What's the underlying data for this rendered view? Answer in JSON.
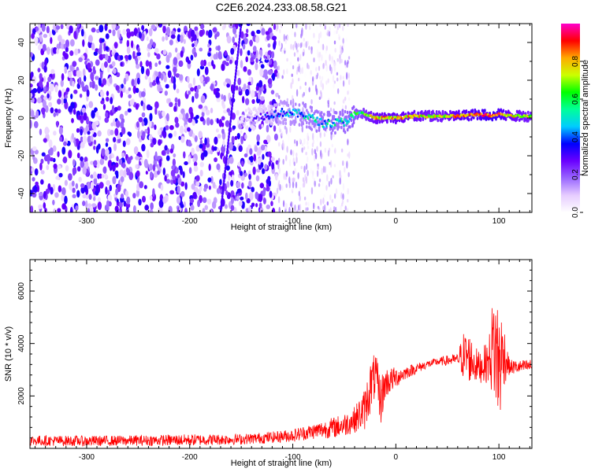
{
  "figure_title": "C2E6.2024.233.08.58.G21",
  "chart_data": [
    {
      "type": "heatmap",
      "title": "C2E6.2024.233.08.58.G21",
      "xlabel": "Height of straight line (km)",
      "ylabel": "Frequency (Hz)",
      "xlim": [
        -355,
        132
      ],
      "ylim": [
        -50,
        50
      ],
      "xticks": [
        -300,
        -200,
        -100,
        0,
        100
      ],
      "yticks": [
        -40,
        -20,
        0,
        20,
        40
      ],
      "colorbar": {
        "label": "Normalized spectral amplitude",
        "range": [
          0,
          1
        ],
        "ticks": [
          0.0,
          0.2,
          0.4,
          0.6,
          0.8
        ],
        "colormap": [
          "#ffffff",
          "#e6ccff",
          "#9966ff",
          "#6a00ff",
          "#0000ff",
          "#00ccff",
          "#00ff99",
          "#00ff00",
          "#ccff00",
          "#ffaa00",
          "#ff0000",
          "#ff00cc"
        ]
      },
      "centerline": {
        "x": [
          -150,
          -130,
          -110,
          -90,
          -70,
          -50,
          -35,
          -20,
          0,
          20,
          40,
          60,
          80,
          95,
          100,
          115,
          132
        ],
        "f": [
          -2,
          1,
          3,
          2,
          -3,
          -2,
          3,
          0,
          0,
          1,
          1,
          1,
          2,
          1,
          2,
          1,
          1
        ],
        "amplitude": [
          0.15,
          0.25,
          0.4,
          0.45,
          0.5,
          0.5,
          0.6,
          0.75,
          0.8,
          0.75,
          0.7,
          0.8,
          0.85,
          0.9,
          0.85,
          0.75,
          0.7
        ]
      },
      "noise_region": {
        "x": [
          -355,
          -115
        ],
        "amplitude": [
          0.05,
          0.35
        ]
      },
      "fade_region": {
        "x": [
          -115,
          -45
        ],
        "amplitude": [
          0.0,
          0.2
        ]
      }
    },
    {
      "type": "line",
      "xlabel": "Height of straight line (km)",
      "ylabel": "SNR (10 * v/v)",
      "xlim": [
        -355,
        132
      ],
      "ylim": [
        0,
        7200
      ],
      "xticks": [
        -300,
        -200,
        -100,
        0,
        100
      ],
      "yticks": [
        2000,
        4000,
        6000
      ],
      "color": "#ff0000",
      "series": [
        {
          "x": [
            -355,
            -300,
            -250,
            -200,
            -150,
            -120,
            -100,
            -80,
            -60,
            -50,
            -40,
            -30,
            -25,
            -20,
            -15,
            -10,
            0,
            10,
            20,
            30,
            40,
            50,
            60,
            65,
            70,
            80,
            90,
            95,
            100,
            105,
            110,
            120,
            132
          ],
          "y": [
            300,
            280,
            300,
            320,
            350,
            420,
            500,
            650,
            800,
            900,
            1100,
            1500,
            2300,
            2800,
            1800,
            2500,
            2700,
            2900,
            3050,
            3200,
            3300,
            3350,
            3400,
            3550,
            3500,
            3100,
            3300,
            4000,
            3200,
            3600,
            3100,
            3100,
            3150
          ],
          "spread": [
            200,
            200,
            200,
            220,
            200,
            220,
            250,
            300,
            400,
            450,
            500,
            800,
            1000,
            900,
            1000,
            600,
            400,
            250,
            200,
            150,
            150,
            200,
            200,
            900,
            1000,
            600,
            800,
            2200,
            2600,
            1200,
            300,
            250,
            250
          ]
        }
      ]
    }
  ]
}
